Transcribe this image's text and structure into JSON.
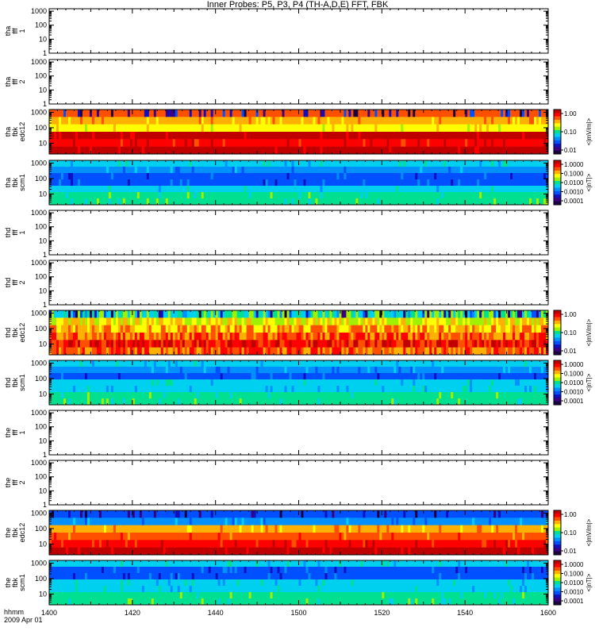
{
  "title": "Inner Probes: P5, P3, P4 (TH-A,D,E) FFT, FBK",
  "colors": {
    "bg": "#ffffff",
    "axis": "#000000",
    "colormap": [
      "#1a0040",
      "#3a0080",
      "#1010c0",
      "#0050ff",
      "#0090ff",
      "#00d0f0",
      "#00e090",
      "#a0f000",
      "#ffff00",
      "#ffb000",
      "#ff5000",
      "#ff0000",
      "#c00000"
    ]
  },
  "chart_data": [
    {
      "type": "heatmap",
      "ylabel": [
        "tha",
        "fff",
        "1"
      ],
      "y_ticks": [
        "1",
        "10",
        "100",
        "1000"
      ],
      "ylim": [
        1,
        1500
      ],
      "empty": true
    },
    {
      "type": "heatmap",
      "ylabel": [
        "tha",
        "fff",
        "2"
      ],
      "y_ticks": [
        "1",
        "10",
        "100",
        "1000"
      ],
      "ylim": [
        1,
        1500
      ],
      "empty": true
    },
    {
      "type": "heatmap",
      "ylabel": [
        "tha",
        "fbk",
        "edc12"
      ],
      "y_ticks": [
        "10",
        "100",
        "1000"
      ],
      "ylim": [
        2,
        1500
      ],
      "colorbar": {
        "ticks": [
          "1.00",
          "0.10",
          "0.01"
        ],
        "label": "<|mV/m|>"
      },
      "bands": [
        10,
        9,
        8,
        12,
        11,
        12
      ],
      "speckle": "edge"
    },
    {
      "type": "heatmap",
      "ylabel": [
        "tha",
        "fbk",
        "scm1"
      ],
      "y_ticks": [
        "10",
        "100",
        "1000"
      ],
      "ylim": [
        2,
        1500
      ],
      "colorbar": {
        "ticks": [
          "1.0000",
          "0.1000",
          "0.0100",
          "0.0010",
          "0.0001"
        ],
        "label": "<|nT|>"
      },
      "bands": [
        5,
        4,
        3,
        3,
        5,
        6,
        6
      ],
      "speckle": "light"
    },
    {
      "type": "heatmap",
      "ylabel": [
        "thd",
        "fff",
        "1"
      ],
      "y_ticks": [
        "1",
        "10",
        "100",
        "1000"
      ],
      "ylim": [
        1,
        1500
      ],
      "empty": true
    },
    {
      "type": "heatmap",
      "ylabel": [
        "thd",
        "fff",
        "2"
      ],
      "y_ticks": [
        "1",
        "10",
        "100",
        "1000"
      ],
      "ylim": [
        1,
        1500
      ],
      "empty": true
    },
    {
      "type": "heatmap",
      "ylabel": [
        "thd",
        "fbk",
        "edc12"
      ],
      "y_ticks": [
        "10",
        "100",
        "1000"
      ],
      "ylim": [
        2,
        1500
      ],
      "colorbar": {
        "ticks": [
          "1.00",
          "0.10",
          "0.01"
        ],
        "label": "<|mV/m|>"
      },
      "bands": [
        6,
        8,
        9,
        10,
        11,
        10
      ],
      "speckle": "heavy"
    },
    {
      "type": "heatmap",
      "ylabel": [
        "thd",
        "fbk",
        "scm1"
      ],
      "y_ticks": [
        "10",
        "100",
        "1000"
      ],
      "ylim": [
        2,
        1500
      ],
      "colorbar": {
        "ticks": [
          "1.0000",
          "0.1000",
          "0.0100",
          "0.0010",
          "0.0001"
        ],
        "label": "<|nT|>"
      },
      "bands": [
        5,
        4,
        3,
        5,
        5,
        6,
        6
      ],
      "speckle": "light"
    },
    {
      "type": "heatmap",
      "ylabel": [
        "the",
        "fff",
        "1"
      ],
      "y_ticks": [
        "1",
        "10",
        "100",
        "1000"
      ],
      "ylim": [
        1,
        1500
      ],
      "empty": true
    },
    {
      "type": "heatmap",
      "ylabel": [
        "the",
        "fff",
        "2"
      ],
      "y_ticks": [
        "1",
        "10",
        "100",
        "1000"
      ],
      "ylim": [
        1,
        1500
      ],
      "empty": true
    },
    {
      "type": "heatmap",
      "ylabel": [
        "the",
        "fbk",
        "edc12"
      ],
      "y_ticks": [
        "10",
        "100",
        "1000"
      ],
      "ylim": [
        2,
        1500
      ],
      "colorbar": {
        "ticks": [
          "1.00",
          "0.10",
          "0.01"
        ],
        "label": "<|mV/m|>"
      },
      "bands": [
        3,
        4,
        9,
        10,
        11,
        12
      ],
      "speckle": "edge"
    },
    {
      "type": "heatmap",
      "ylabel": [
        "the",
        "fbk",
        "scm1"
      ],
      "y_ticks": [
        "10",
        "100",
        "1000"
      ],
      "ylim": [
        2,
        1500
      ],
      "colorbar": {
        "ticks": [
          "1.0000",
          "0.1000",
          "0.0100",
          "0.0010",
          "0.0001"
        ],
        "label": "<|nT|>"
      },
      "bands": [
        5,
        3,
        3,
        5,
        5,
        6,
        6
      ],
      "speckle": "light"
    }
  ],
  "x_axis": {
    "ticks": [
      "1400",
      "1420",
      "1440",
      "1500",
      "1520",
      "1540",
      "1600"
    ],
    "row1": "hhmm",
    "row2": "2009 Apr 01"
  }
}
